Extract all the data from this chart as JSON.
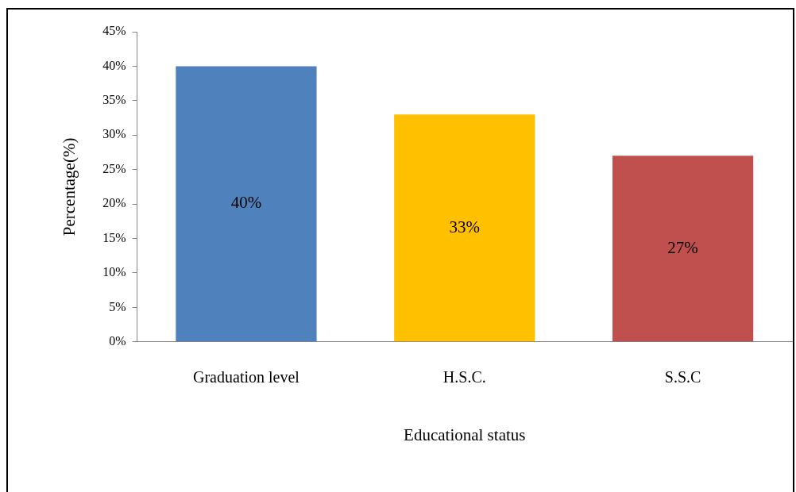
{
  "chart_data": {
    "type": "bar",
    "xlabel": "Educational status",
    "ylabel": "Percentage(%)",
    "categories": [
      "Graduation level",
      "H.S.C.",
      "S.S.C"
    ],
    "values": [
      40,
      33,
      27
    ],
    "colors": [
      "#4f81bd",
      "#ffc000",
      "#c0504d"
    ],
    "value_labels": [
      "40%",
      "33%",
      "27%"
    ],
    "ylim": [
      0,
      45
    ],
    "yticks": [
      {
        "value": 0,
        "label": "0%"
      },
      {
        "value": 5,
        "label": "5%"
      },
      {
        "value": 10,
        "label": "10%"
      },
      {
        "value": 15,
        "label": "15%"
      },
      {
        "value": 20,
        "label": "20%"
      },
      {
        "value": 25,
        "label": "25%"
      },
      {
        "value": 30,
        "label": "30%"
      },
      {
        "value": 35,
        "label": "35%"
      },
      {
        "value": 40,
        "label": "40%"
      },
      {
        "value": 45,
        "label": "45%"
      }
    ],
    "grid": false,
    "legend": false
  }
}
